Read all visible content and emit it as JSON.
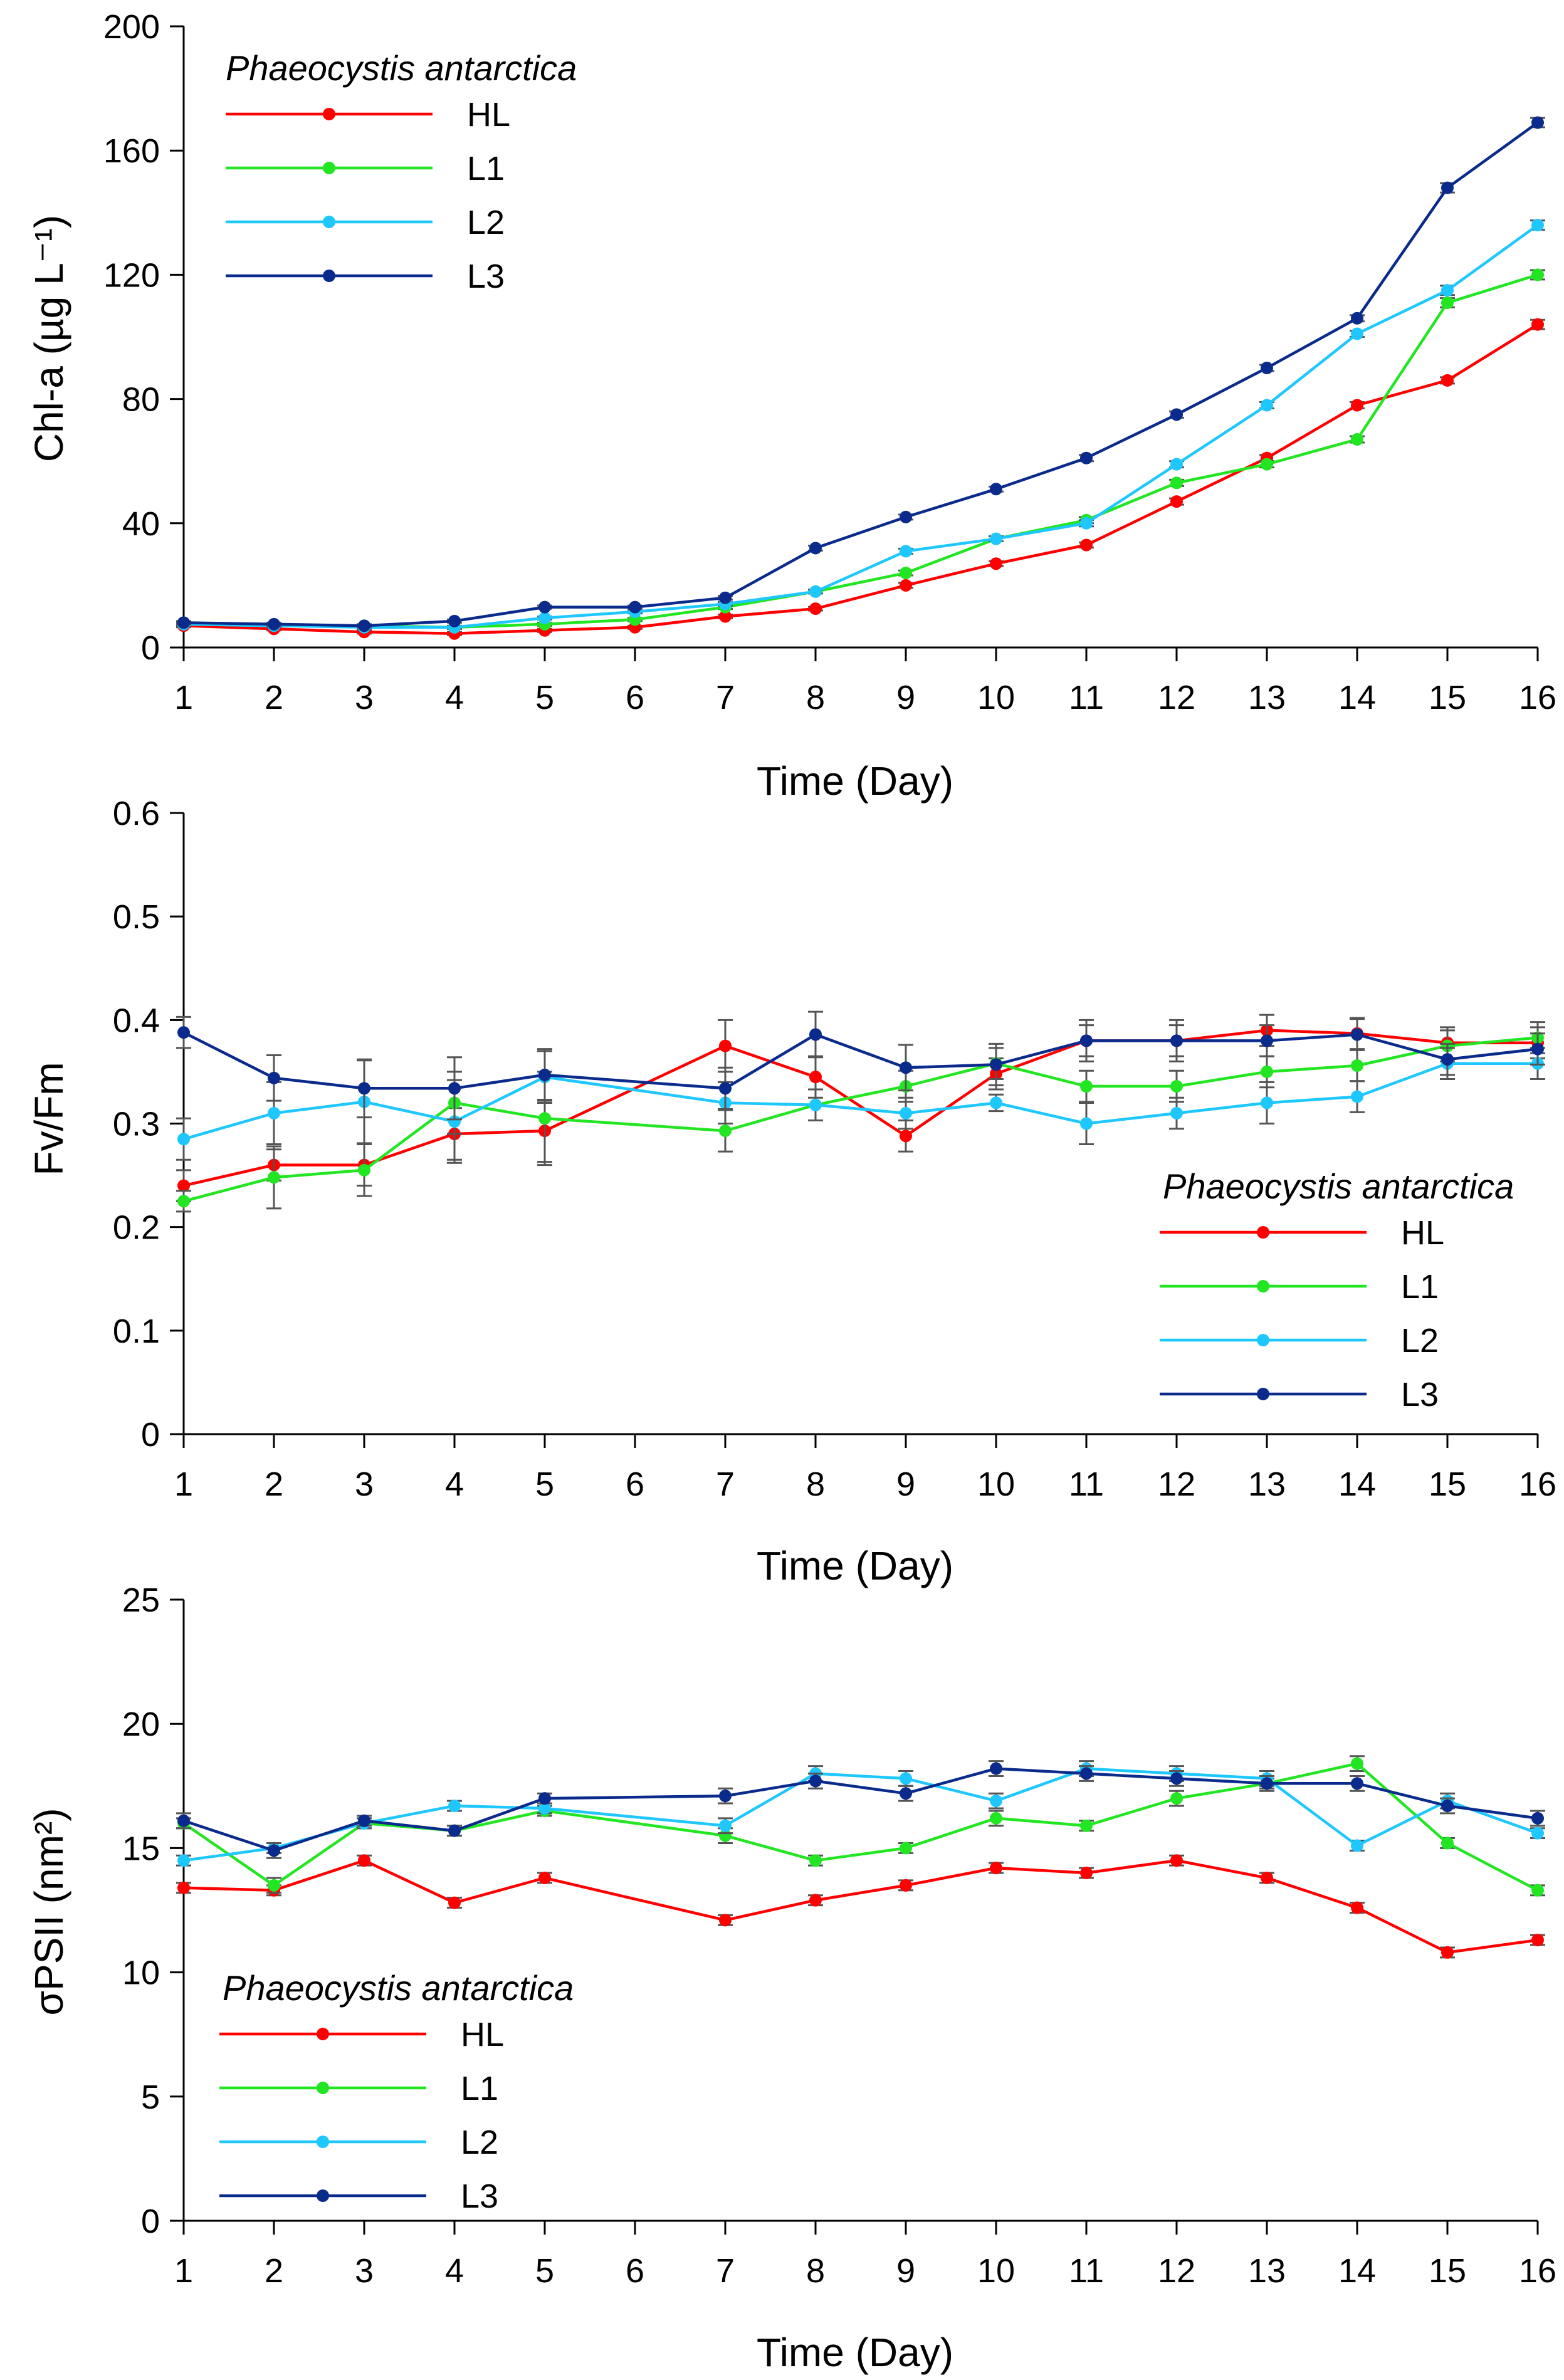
{
  "colors": {
    "HL": "#ff0000",
    "L1": "#22e622",
    "L2": "#1ec8ff",
    "L3": "#0a2a8c",
    "errorbar": "#555555",
    "axis": "#000000"
  },
  "chart_data": [
    {
      "type": "line",
      "ylabel": "Chl-a (µg L⁻¹)",
      "xlabel": "Time (Day)",
      "xlim": [
        1,
        16
      ],
      "ylim": [
        0,
        200
      ],
      "yticks": [
        0,
        40,
        80,
        120,
        160,
        200
      ],
      "xticks": [
        1,
        2,
        3,
        4,
        5,
        6,
        7,
        8,
        9,
        10,
        11,
        12,
        13,
        14,
        15,
        16
      ],
      "legend": {
        "title": "Phaeocystis antarctica",
        "position": "top-left"
      },
      "x": [
        1,
        2,
        3,
        4,
        5,
        6,
        7,
        8,
        9,
        10,
        11,
        12,
        13,
        14,
        15,
        16
      ],
      "series": [
        {
          "name": "HL",
          "values": [
            7,
            6,
            5,
            4.5,
            5.5,
            6.5,
            10,
            12.5,
            20,
            27,
            33,
            47,
            61,
            78,
            86,
            104
          ],
          "errors": [
            0.5,
            0.5,
            0.5,
            0.5,
            0.5,
            0.5,
            0.6,
            0.6,
            0.8,
            0.8,
            0.8,
            1,
            1,
            1,
            1,
            1.5
          ]
        },
        {
          "name": "L1",
          "values": [
            7.5,
            7,
            7,
            6.5,
            7.5,
            9,
            13,
            18,
            24,
            35,
            41,
            53,
            59,
            67,
            111,
            120
          ],
          "errors": [
            0.5,
            0.5,
            0.5,
            0.5,
            0.5,
            0.5,
            0.6,
            0.6,
            0.8,
            0.8,
            1,
            1,
            1,
            1,
            1.5,
            1.5
          ]
        },
        {
          "name": "L2",
          "values": [
            7.5,
            7,
            6.5,
            6.5,
            9.5,
            11.5,
            14,
            18,
            31,
            35,
            40,
            59,
            78,
            101,
            115,
            136
          ],
          "errors": [
            0.5,
            0.5,
            0.5,
            0.5,
            0.5,
            0.5,
            0.6,
            0.6,
            0.8,
            0.8,
            1,
            1,
            1,
            1,
            1.5,
            1.5
          ]
        },
        {
          "name": "L3",
          "values": [
            8,
            7.5,
            7,
            8.5,
            13,
            13,
            16,
            32,
            42,
            51,
            61,
            75,
            90,
            106,
            148,
            169
          ],
          "errors": [
            0.5,
            0.5,
            0.5,
            0.5,
            0.5,
            0.5,
            0.6,
            0.8,
            0.8,
            0.8,
            1,
            1,
            1,
            1,
            1.5,
            1.5
          ]
        }
      ]
    },
    {
      "type": "line",
      "ylabel": "Fv/Fm",
      "xlabel": "Time (Day)",
      "xlim": [
        1,
        16
      ],
      "ylim": [
        0,
        0.6
      ],
      "yticks": [
        0,
        0.1,
        0.2,
        0.3,
        0.4,
        0.5,
        0.6
      ],
      "xticks": [
        1,
        2,
        3,
        4,
        5,
        6,
        7,
        8,
        9,
        10,
        11,
        12,
        13,
        14,
        15,
        16
      ],
      "legend": {
        "title": "Phaeocystis antarctica",
        "position": "bottom-right"
      },
      "x": [
        1,
        2,
        3,
        4,
        5,
        7,
        8,
        9,
        10,
        11,
        12,
        13,
        14,
        15,
        16
      ],
      "series": [
        {
          "name": "HL",
          "values": [
            0.24,
            0.26,
            0.26,
            0.29,
            0.293,
            0.375,
            0.345,
            0.288,
            0.348,
            0.38,
            0.38,
            0.39,
            0.387,
            0.378,
            0.378
          ],
          "errors": [
            0.015,
            0.015,
            0.02,
            0.025,
            0.03,
            0.025,
            0.02,
            0.015,
            0.015,
            0.015,
            0.015,
            0.015,
            0.015,
            0.015,
            0.015
          ]
        },
        {
          "name": "L1",
          "values": [
            0.225,
            0.248,
            0.255,
            0.32,
            0.305,
            0.293,
            0.318,
            0.336,
            0.358,
            0.336,
            0.336,
            0.35,
            0.356,
            0.375,
            0.383
          ],
          "errors": [
            0.01,
            0.03,
            0.025,
            0.03,
            0.045,
            0.02,
            0.015,
            0.015,
            0.015,
            0.015,
            0.015,
            0.015,
            0.015,
            0.015,
            0.015
          ]
        },
        {
          "name": "L2",
          "values": [
            0.285,
            0.31,
            0.321,
            0.302,
            0.345,
            0.32,
            0.318,
            0.31,
            0.32,
            0.3,
            0.31,
            0.32,
            0.326,
            0.358,
            0.358
          ],
          "errors": [
            0.02,
            0.03,
            0.04,
            0.04,
            0.025,
            0.02,
            0.015,
            0.015,
            0.008,
            0.02,
            0.015,
            0.02,
            0.015,
            0.015,
            0.015
          ]
        },
        {
          "name": "L3",
          "values": [
            0.388,
            0.344,
            0.334,
            0.334,
            0.347,
            0.334,
            0.386,
            0.354,
            0.357,
            0.38,
            0.38,
            0.38,
            0.386,
            0.362,
            0.372
          ],
          "errors": [
            0.015,
            0.022,
            0.028,
            0.03,
            0.025,
            0.02,
            0.022,
            0.022,
            0.02,
            0.02,
            0.02,
            0.015,
            0.015,
            0.015,
            0.015
          ]
        }
      ]
    },
    {
      "type": "line",
      "ylabel": "σPSII (nm²)",
      "xlabel": "Time (Day)",
      "xlim": [
        1,
        16
      ],
      "ylim": [
        0,
        25
      ],
      "yticks": [
        0,
        5,
        10,
        15,
        20,
        25
      ],
      "xticks": [
        1,
        2,
        3,
        4,
        5,
        6,
        7,
        8,
        9,
        10,
        11,
        12,
        13,
        14,
        15,
        16
      ],
      "legend": {
        "title": "Phaeocystis antarctica",
        "position": "bottom-left"
      },
      "x": [
        1,
        2,
        3,
        4,
        5,
        7,
        8,
        9,
        10,
        11,
        12,
        13,
        14,
        15,
        16
      ],
      "series": [
        {
          "name": "HL",
          "values": [
            13.4,
            13.3,
            14.5,
            12.8,
            13.8,
            12.1,
            12.9,
            13.5,
            14.2,
            14.0,
            14.5,
            13.8,
            12.6,
            10.8,
            11.3
          ],
          "errors": [
            0.2,
            0.2,
            0.2,
            0.2,
            0.2,
            0.2,
            0.2,
            0.2,
            0.2,
            0.2,
            0.2,
            0.2,
            0.2,
            0.2,
            0.2
          ]
        },
        {
          "name": "L1",
          "values": [
            16.0,
            13.5,
            16.0,
            15.7,
            16.5,
            15.5,
            14.5,
            15.0,
            16.2,
            15.9,
            17.0,
            17.6,
            18.4,
            15.2,
            13.3
          ],
          "errors": [
            0.2,
            0.3,
            0.2,
            0.2,
            0.2,
            0.3,
            0.2,
            0.2,
            0.3,
            0.2,
            0.3,
            0.2,
            0.3,
            0.2,
            0.2
          ]
        },
        {
          "name": "L2",
          "values": [
            14.5,
            15.0,
            16.0,
            16.7,
            16.6,
            15.9,
            18.0,
            17.8,
            16.9,
            18.2,
            18.0,
            17.8,
            15.1,
            16.9,
            15.6
          ],
          "errors": [
            0.2,
            0.2,
            0.2,
            0.2,
            0.2,
            0.3,
            0.3,
            0.3,
            0.3,
            0.3,
            0.3,
            0.3,
            0.2,
            0.3,
            0.2
          ]
        },
        {
          "name": "L3",
          "values": [
            16.1,
            14.9,
            16.1,
            15.7,
            17.0,
            17.1,
            17.7,
            17.2,
            18.2,
            18.0,
            17.8,
            17.6,
            17.6,
            16.7,
            16.2
          ],
          "errors": [
            0.3,
            0.3,
            0.2,
            0.2,
            0.2,
            0.3,
            0.3,
            0.3,
            0.3,
            0.3,
            0.3,
            0.3,
            0.3,
            0.3,
            0.3
          ]
        }
      ]
    }
  ]
}
